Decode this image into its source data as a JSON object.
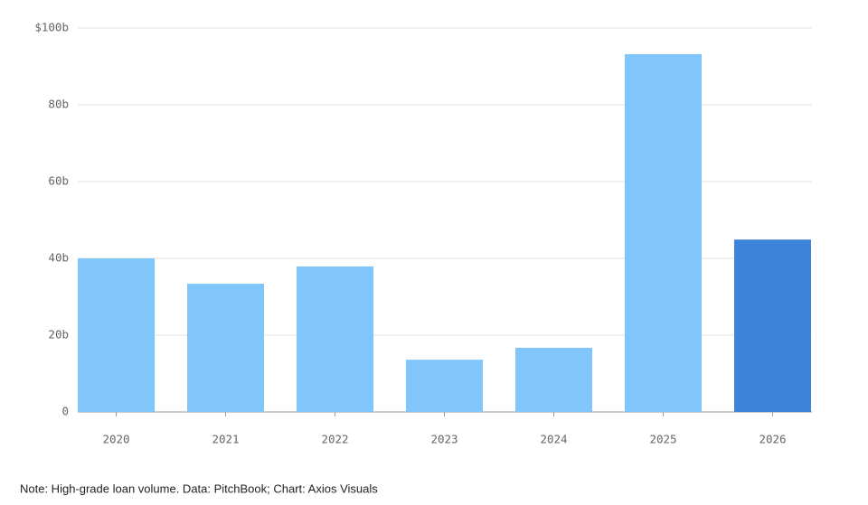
{
  "chart_data": {
    "type": "bar",
    "categories": [
      "2020",
      "2021",
      "2022",
      "2023",
      "2024",
      "2025",
      "2026"
    ],
    "values": [
      40.0,
      33.4,
      37.9,
      13.6,
      16.7,
      93.2,
      44.9
    ],
    "colors": [
      "#80c6fa",
      "#80c6fa",
      "#80c6fa",
      "#80c6fa",
      "#80c6fa",
      "#80c6fa",
      "#3d85db"
    ],
    "ylim": [
      0,
      100
    ],
    "yticks": [
      0,
      {
        "value": 20,
        "label": "20b"
      },
      {
        "value": 40,
        "label": "40b"
      },
      {
        "value": 60,
        "label": "60b"
      },
      {
        "value": 80,
        "label": "80b"
      },
      {
        "value": 100,
        "label": "$100b"
      }
    ],
    "grid": true,
    "note": "Note: High-grade loan volume. Data: PitchBook; Chart: Axios Visuals"
  }
}
